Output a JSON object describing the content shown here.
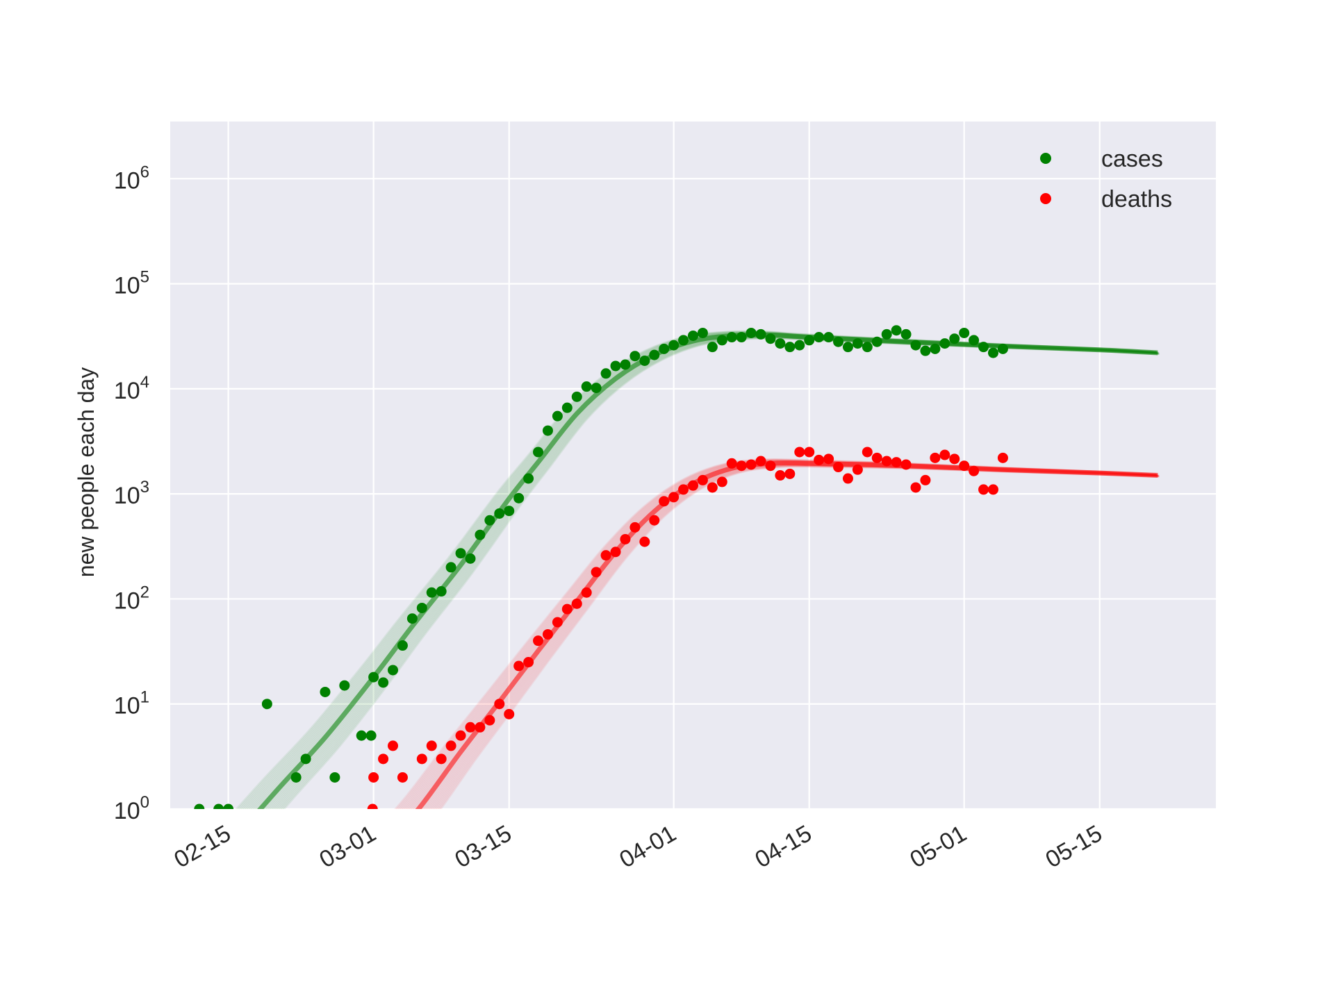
{
  "chart_data": {
    "type": "scatter",
    "title": "",
    "xlabel": "",
    "ylabel": "new people each day",
    "yscale": "log",
    "ylim": [
      1,
      3500000
    ],
    "xlim": [
      "2020-02-09",
      "2020-05-27"
    ],
    "grid": true,
    "legend_position": "top-right",
    "background": "#eaeaf2",
    "x_ticks": [
      "02-15",
      "03-01",
      "03-15",
      "04-01",
      "04-15",
      "05-01",
      "05-15"
    ],
    "y_ticks": [
      {
        "base": "10",
        "exp": "0"
      },
      {
        "base": "10",
        "exp": "1"
      },
      {
        "base": "10",
        "exp": "2"
      },
      {
        "base": "10",
        "exp": "3"
      },
      {
        "base": "10",
        "exp": "4"
      },
      {
        "base": "10",
        "exp": "5"
      },
      {
        "base": "10",
        "exp": "6"
      }
    ],
    "series": [
      {
        "name": "cases",
        "color": "#008000",
        "points": [
          [
            "2020-02-12",
            1
          ],
          [
            "2020-02-14",
            1
          ],
          [
            "2020-02-15",
            1
          ],
          [
            "2020-02-19",
            10
          ],
          [
            "2020-02-22",
            2
          ],
          [
            "2020-02-23",
            3
          ],
          [
            "2020-02-25",
            13
          ],
          [
            "2020-02-26",
            2
          ],
          [
            "2020-02-27",
            15
          ],
          [
            "2020-02-28.75",
            5
          ],
          [
            "2020-02-29.75",
            5
          ],
          [
            "2020-03-01",
            18
          ],
          [
            "2020-03-02",
            16
          ],
          [
            "2020-03-03",
            21
          ],
          [
            "2020-03-04",
            36
          ],
          [
            "2020-03-05",
            65
          ],
          [
            "2020-03-06",
            82
          ],
          [
            "2020-03-07",
            115
          ],
          [
            "2020-03-08",
            118
          ],
          [
            "2020-03-09",
            200
          ],
          [
            "2020-03-10",
            272
          ],
          [
            "2020-03-11",
            242
          ],
          [
            "2020-03-12",
            407
          ],
          [
            "2020-03-13",
            560
          ],
          [
            "2020-03-14",
            650
          ],
          [
            "2020-03-15",
            688
          ],
          [
            "2020-03-16",
            910
          ],
          [
            "2020-03-17",
            1400
          ],
          [
            "2020-03-18",
            2500
          ],
          [
            "2020-03-19",
            4000
          ],
          [
            "2020-03-20",
            5500
          ],
          [
            "2020-03-21",
            6600
          ],
          [
            "2020-03-22",
            8400
          ],
          [
            "2020-03-23",
            10500
          ],
          [
            "2020-03-24",
            10200
          ],
          [
            "2020-03-25",
            14000
          ],
          [
            "2020-03-26",
            16500
          ],
          [
            "2020-03-27",
            17000
          ],
          [
            "2020-03-28",
            20500
          ],
          [
            "2020-03-29",
            18500
          ],
          [
            "2020-03-30",
            21000
          ],
          [
            "2020-03-31",
            24000
          ],
          [
            "2020-04-01",
            26000
          ],
          [
            "2020-04-02",
            29000
          ],
          [
            "2020-04-03",
            32000
          ],
          [
            "2020-04-04",
            34000
          ],
          [
            "2020-04-05",
            25000
          ],
          [
            "2020-04-06",
            29000
          ],
          [
            "2020-04-07",
            31000
          ],
          [
            "2020-04-08",
            31000
          ],
          [
            "2020-04-09",
            34000
          ],
          [
            "2020-04-10",
            33000
          ],
          [
            "2020-04-11",
            30000
          ],
          [
            "2020-04-12",
            27000
          ],
          [
            "2020-04-13",
            25000
          ],
          [
            "2020-04-14",
            26000
          ],
          [
            "2020-04-15",
            29000
          ],
          [
            "2020-04-16",
            31000
          ],
          [
            "2020-04-17",
            31000
          ],
          [
            "2020-04-18",
            28000
          ],
          [
            "2020-04-19",
            25000
          ],
          [
            "2020-04-20",
            27000
          ],
          [
            "2020-04-21",
            25000
          ],
          [
            "2020-04-22",
            28000
          ],
          [
            "2020-04-23",
            33000
          ],
          [
            "2020-04-24",
            36000
          ],
          [
            "2020-04-25",
            33000
          ],
          [
            "2020-04-26",
            26000
          ],
          [
            "2020-04-27",
            23000
          ],
          [
            "2020-04-28",
            24000
          ],
          [
            "2020-04-29",
            27000
          ],
          [
            "2020-04-30",
            30000
          ],
          [
            "2020-05-01",
            34000
          ],
          [
            "2020-05-02",
            29000
          ],
          [
            "2020-05-03",
            25000
          ],
          [
            "2020-05-04",
            22000
          ],
          [
            "2020-05-05",
            24000
          ]
        ],
        "fit": [
          [
            "2020-02-14",
            0.35
          ],
          [
            "2020-02-20",
            1.5
          ],
          [
            "2020-02-25",
            4.8
          ],
          [
            "2020-03-01",
            18
          ],
          [
            "2020-03-05",
            55
          ],
          [
            "2020-03-10",
            210
          ],
          [
            "2020-03-15",
            900
          ],
          [
            "2020-03-18",
            2000
          ],
          [
            "2020-03-22",
            5800
          ],
          [
            "2020-03-26",
            12500
          ],
          [
            "2020-03-30",
            21000
          ],
          [
            "2020-04-03",
            28500
          ],
          [
            "2020-04-07",
            32000
          ],
          [
            "2020-04-11",
            32500
          ],
          [
            "2020-04-15",
            31000
          ],
          [
            "2020-04-25",
            28000
          ],
          [
            "2020-05-05",
            25500
          ],
          [
            "2020-05-15",
            23500
          ],
          [
            "2020-05-21",
            22000
          ]
        ]
      },
      {
        "name": "deaths",
        "color": "#ff0000",
        "points": [
          [
            "2020-02-29.9",
            1
          ],
          [
            "2020-03-01",
            2
          ],
          [
            "2020-03-02",
            3
          ],
          [
            "2020-03-03",
            4
          ],
          [
            "2020-03-04",
            2
          ],
          [
            "2020-03-06",
            3
          ],
          [
            "2020-03-07",
            4
          ],
          [
            "2020-03-08",
            3
          ],
          [
            "2020-03-09",
            4
          ],
          [
            "2020-03-10",
            5
          ],
          [
            "2020-03-11",
            6
          ],
          [
            "2020-03-12",
            6
          ],
          [
            "2020-03-13",
            7
          ],
          [
            "2020-03-14",
            10
          ],
          [
            "2020-03-15",
            8
          ],
          [
            "2020-03-16",
            23
          ],
          [
            "2020-03-17",
            25
          ],
          [
            "2020-03-18",
            40
          ],
          [
            "2020-03-19",
            46
          ],
          [
            "2020-03-20",
            60
          ],
          [
            "2020-03-21",
            80
          ],
          [
            "2020-03-22",
            90
          ],
          [
            "2020-03-23",
            115
          ],
          [
            "2020-03-24",
            180
          ],
          [
            "2020-03-25",
            260
          ],
          [
            "2020-03-26",
            280
          ],
          [
            "2020-03-27",
            370
          ],
          [
            "2020-03-28",
            480
          ],
          [
            "2020-03-29",
            350
          ],
          [
            "2020-03-30",
            560
          ],
          [
            "2020-03-31",
            850
          ],
          [
            "2020-04-01",
            930
          ],
          [
            "2020-04-02",
            1100
          ],
          [
            "2020-04-03",
            1200
          ],
          [
            "2020-04-04",
            1350
          ],
          [
            "2020-04-05",
            1150
          ],
          [
            "2020-04-06",
            1300
          ],
          [
            "2020-04-07",
            1950
          ],
          [
            "2020-04-08",
            1850
          ],
          [
            "2020-04-09",
            1900
          ],
          [
            "2020-04-10",
            2050
          ],
          [
            "2020-04-11",
            1850
          ],
          [
            "2020-04-12",
            1500
          ],
          [
            "2020-04-13",
            1550
          ],
          [
            "2020-04-14",
            2500
          ],
          [
            "2020-04-15",
            2500
          ],
          [
            "2020-04-16",
            2100
          ],
          [
            "2020-04-17",
            2150
          ],
          [
            "2020-04-18",
            1800
          ],
          [
            "2020-04-19",
            1400
          ],
          [
            "2020-04-20",
            1700
          ],
          [
            "2020-04-21",
            2500
          ],
          [
            "2020-04-22",
            2200
          ],
          [
            "2020-04-23",
            2050
          ],
          [
            "2020-04-24",
            2000
          ],
          [
            "2020-04-25",
            1900
          ],
          [
            "2020-04-26",
            1150
          ],
          [
            "2020-04-27",
            1350
          ],
          [
            "2020-04-28",
            2200
          ],
          [
            "2020-04-29",
            2350
          ],
          [
            "2020-04-30",
            2150
          ],
          [
            "2020-05-01",
            1850
          ],
          [
            "2020-05-02",
            1650
          ],
          [
            "2020-05-03",
            1100
          ],
          [
            "2020-05-04",
            1100
          ],
          [
            "2020-05-05",
            2200
          ]
        ],
        "fit": [
          [
            "2020-03-02",
            0.4
          ],
          [
            "2020-03-06",
            1.1
          ],
          [
            "2020-03-10",
            3.5
          ],
          [
            "2020-03-14",
            10.5
          ],
          [
            "2020-03-18",
            32
          ],
          [
            "2020-03-22",
            95
          ],
          [
            "2020-03-26",
            280
          ],
          [
            "2020-03-30",
            680
          ],
          [
            "2020-04-03",
            1250
          ],
          [
            "2020-04-07",
            1750
          ],
          [
            "2020-04-11",
            1950
          ],
          [
            "2020-04-15",
            1950
          ],
          [
            "2020-04-25",
            1850
          ],
          [
            "2020-05-05",
            1700
          ],
          [
            "2020-05-15",
            1580
          ],
          [
            "2020-05-21",
            1500
          ]
        ]
      }
    ]
  }
}
